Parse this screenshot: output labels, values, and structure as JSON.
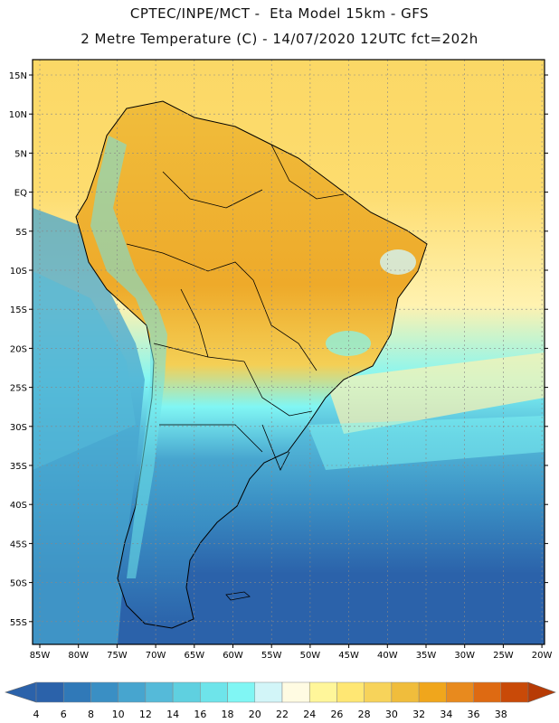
{
  "header": {
    "line1": "CPTEC/INPE/MCT -  Eta Model 15km - GFS",
    "line2": "2 Metre Temperature (C) - 14/07/2020 12UTC fct=202h"
  },
  "axes": {
    "lat_labels": [
      "15N",
      "10N",
      "5N",
      "EQ",
      "5S",
      "10S",
      "15S",
      "20S",
      "25S",
      "30S",
      "35S",
      "40S",
      "45S",
      "50S",
      "55S"
    ],
    "lon_labels": [
      "85W",
      "80W",
      "75W",
      "70W",
      "65W",
      "60W",
      "55W",
      "50W",
      "45W",
      "40W",
      "35W",
      "30W",
      "25W",
      "20W"
    ]
  },
  "colorbar": {
    "labels": [
      "4",
      "6",
      "8",
      "10",
      "12",
      "14",
      "16",
      "18",
      "20",
      "22",
      "24",
      "26",
      "28",
      "30",
      "32",
      "34",
      "36",
      "38"
    ],
    "colors": [
      "#2b62aa",
      "#3079b8",
      "#3a8fc4",
      "#47a5cf",
      "#55bad9",
      "#5fd0e0",
      "#6ee4ea",
      "#80f6f4",
      "#d2f5f8",
      "#fffbe2",
      "#fff69a",
      "#ffe773",
      "#f7d35a",
      "#f0bd3c",
      "#f0a61c",
      "#e88a1e",
      "#de6a12",
      "#c94a08"
    ],
    "under_color": "#2b62aa",
    "over_color": "#b73b05"
  },
  "map": {
    "ocean_north_color": "#fbd866",
    "ocean_south_color": "#2b62aa"
  }
}
